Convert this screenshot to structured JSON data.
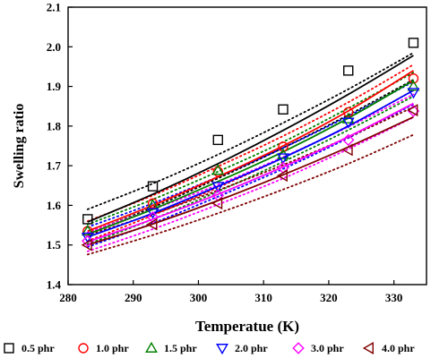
{
  "chart_data": {
    "type": "scatter",
    "title": "",
    "xlabel": "Temperatue (K)",
    "ylabel": "Swelling ratio",
    "xlim": [
      280,
      335
    ],
    "ylim": [
      1.4,
      2.1
    ],
    "x_ticks": [
      "280",
      "290",
      "300",
      "310",
      "320",
      "330"
    ],
    "y_ticks": [
      "1.4",
      "1.5",
      "1.6",
      "1.7",
      "1.8",
      "1.9",
      "2.0",
      "2.1"
    ],
    "grid": false,
    "legend_position": "bottom",
    "x": [
      283,
      293,
      303,
      313,
      323,
      333
    ],
    "series": [
      {
        "name": "0.5 phr",
        "marker": "square",
        "color": "#000000",
        "values": [
          1.565,
          1.648,
          1.765,
          1.842,
          1.94,
          2.01
        ],
        "fit": [
          1.558,
          1.628,
          1.705,
          1.789,
          1.88,
          1.978
        ],
        "band_upper": [
          1.59,
          1.655,
          1.728,
          1.808,
          1.893,
          1.985
        ],
        "band_lower": [
          1.53,
          1.595,
          1.668,
          1.745,
          1.828,
          1.917
        ]
      },
      {
        "name": "1.0 phr",
        "marker": "circle",
        "color": "#ff0000",
        "values": [
          1.535,
          1.605,
          1.685,
          1.748,
          1.835,
          1.92
        ],
        "fit": [
          1.535,
          1.6,
          1.672,
          1.75,
          1.838,
          1.94
        ],
        "band_upper": [
          1.56,
          1.625,
          1.698,
          1.775,
          1.86,
          1.955
        ],
        "band_lower": [
          1.51,
          1.575,
          1.645,
          1.72,
          1.8,
          1.89
        ]
      },
      {
        "name": "1.5 phr",
        "marker": "triangle-up",
        "color": "#008000",
        "values": [
          1.535,
          1.6,
          1.688,
          1.728,
          1.818,
          1.9
        ],
        "fit": [
          1.527,
          1.59,
          1.66,
          1.735,
          1.82,
          1.915
        ],
        "band_upper": [
          1.552,
          1.615,
          1.685,
          1.76,
          1.845,
          1.935
        ],
        "band_lower": [
          1.502,
          1.565,
          1.635,
          1.71,
          1.79,
          1.875
        ]
      },
      {
        "name": "2.0 phr",
        "marker": "triangle-down",
        "color": "#0000ff",
        "values": [
          1.52,
          1.582,
          1.648,
          1.72,
          1.81,
          1.885
        ],
        "fit": [
          1.52,
          1.58,
          1.648,
          1.72,
          1.8,
          1.89
        ],
        "band_upper": [
          1.545,
          1.605,
          1.672,
          1.745,
          1.825,
          1.912
        ],
        "band_lower": [
          1.495,
          1.555,
          1.622,
          1.692,
          1.77,
          1.855
        ]
      },
      {
        "name": "3.0 phr",
        "marker": "diamond",
        "color": "#ff00ff",
        "values": [
          1.51,
          1.57,
          1.625,
          1.695,
          1.765,
          1.838
        ],
        "fit": [
          1.508,
          1.565,
          1.628,
          1.697,
          1.773,
          1.857
        ],
        "band_upper": [
          1.532,
          1.59,
          1.652,
          1.722,
          1.798,
          1.88
        ],
        "band_lower": [
          1.484,
          1.54,
          1.602,
          1.668,
          1.742,
          1.822
        ]
      },
      {
        "name": "4.0 phr",
        "marker": "triangle-left",
        "color": "#800000",
        "values": [
          1.5,
          1.552,
          1.605,
          1.675,
          1.74,
          1.84
        ],
        "fit": [
          1.5,
          1.553,
          1.612,
          1.677,
          1.747,
          1.823
        ],
        "band_upper": [
          1.525,
          1.578,
          1.638,
          1.702,
          1.772,
          1.848
        ],
        "band_lower": [
          1.476,
          1.525,
          1.58,
          1.64,
          1.705,
          1.778
        ]
      }
    ]
  }
}
